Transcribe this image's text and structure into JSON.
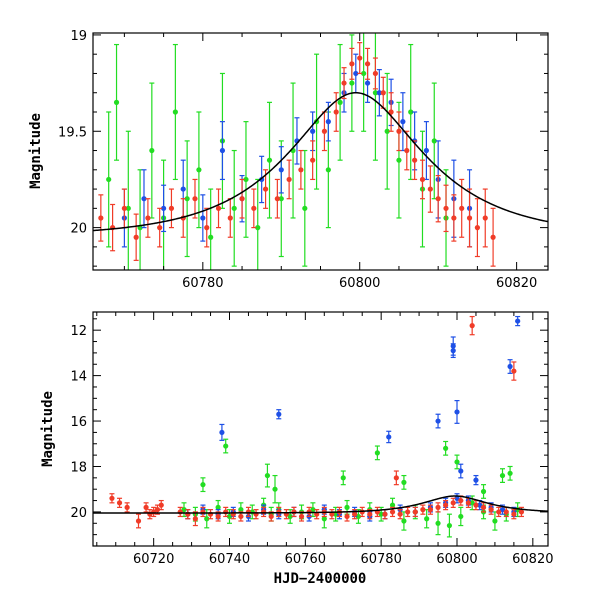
{
  "chart_data": [
    {
      "type": "scatter",
      "title": "",
      "xlabel": "",
      "ylabel": "Magnitude",
      "xlim": [
        60766,
        60824
      ],
      "ylim": [
        20.22,
        18.99
      ],
      "y_inverted": true,
      "x_ticks": [
        60780,
        60800,
        60820
      ],
      "y_ticks": [
        19,
        19.5,
        20
      ],
      "y_tick_labels": [
        "19",
        "19.5",
        "20"
      ],
      "model_curve": {
        "name": "",
        "color": "#000000",
        "baseline": 20.05,
        "peak_time": 60799.5,
        "peak_mag": 19.3,
        "tE": 14,
        "x_range": [
          60766,
          60824
        ]
      },
      "series": [
        {
          "name": "",
          "color": "#22dd22",
          "x": [
            60768,
            60769,
            60770.5,
            60772,
            60773.5,
            60775,
            60776.5,
            60778,
            60779.5,
            60781,
            60782.5,
            60784,
            60785.5,
            60787,
            60788.5,
            60790,
            60791.5,
            60793,
            60794.5,
            60796,
            60797.5,
            60799,
            60800.5,
            60802,
            60803.5,
            60805,
            60806.5,
            60808,
            60809.5,
            60811
          ],
          "y": [
            19.75,
            19.35,
            19.9,
            20.0,
            19.6,
            19.95,
            19.4,
            19.85,
            19.7,
            20.05,
            19.55,
            19.9,
            19.75,
            20.0,
            19.65,
            19.85,
            19.6,
            19.9,
            19.45,
            19.7,
            19.35,
            19.25,
            19.2,
            19.3,
            19.5,
            19.65,
            19.4,
            19.8,
            19.55,
            19.95
          ],
          "err": [
            0.35,
            0.3,
            0.4,
            0.3,
            0.35,
            0.3,
            0.35,
            0.3,
            0.3,
            0.25,
            0.35,
            0.3,
            0.3,
            0.25,
            0.3,
            0.3,
            0.35,
            0.3,
            0.35,
            0.3,
            0.3,
            0.25,
            0.3,
            0.35,
            0.3,
            0.3,
            0.35,
            0.3,
            0.3,
            0.25
          ]
        },
        {
          "name": "",
          "color": "#1e50e6",
          "x": [
            60770,
            60772.5,
            60775,
            60777.5,
            60780,
            60782.5,
            60785,
            60787.5,
            60790,
            60792,
            60794,
            60796,
            60798,
            60799.5,
            60801,
            60802.5,
            60804,
            60805.5,
            60807,
            60808.5,
            60810,
            60812,
            60814
          ],
          "y": [
            19.95,
            19.85,
            19.9,
            19.8,
            19.95,
            19.6,
            19.85,
            19.75,
            19.7,
            19.55,
            19.5,
            19.45,
            19.3,
            19.2,
            19.25,
            19.3,
            19.35,
            19.45,
            19.55,
            19.6,
            19.75,
            19.85,
            19.9
          ],
          "err": [
            0.15,
            0.15,
            0.12,
            0.15,
            0.12,
            0.15,
            0.12,
            0.12,
            0.12,
            0.12,
            0.1,
            0.1,
            0.1,
            0.1,
            0.1,
            0.12,
            0.12,
            0.15,
            0.15,
            0.15,
            0.2,
            0.2,
            0.2
          ]
        },
        {
          "name": "",
          "color": "#f03c28",
          "x": [
            60767,
            60768.5,
            60770,
            60771.5,
            60773,
            60774.5,
            60776,
            60777.5,
            60779,
            60780.5,
            60782,
            60783.5,
            60785,
            60786.5,
            60788,
            60789.5,
            60791,
            60792.5,
            60794,
            60795.5,
            60797,
            60798,
            60799,
            60800,
            60801,
            60802,
            60803,
            60804,
            60805,
            60806,
            60807,
            60808,
            60809,
            60810,
            60811,
            60812,
            60813,
            60814,
            60815,
            60816,
            60817
          ],
          "y": [
            19.95,
            20.0,
            19.9,
            20.05,
            19.95,
            20.0,
            19.9,
            19.95,
            19.85,
            20.0,
            19.9,
            19.95,
            19.85,
            19.9,
            19.8,
            19.85,
            19.75,
            19.7,
            19.65,
            19.5,
            19.4,
            19.25,
            19.15,
            19.12,
            19.15,
            19.2,
            19.3,
            19.4,
            19.5,
            19.6,
            19.65,
            19.75,
            19.8,
            19.85,
            19.9,
            19.95,
            19.9,
            19.95,
            20.0,
            19.95,
            20.05
          ],
          "err": [
            0.12,
            0.12,
            0.1,
            0.12,
            0.1,
            0.1,
            0.1,
            0.1,
            0.1,
            0.1,
            0.1,
            0.1,
            0.1,
            0.1,
            0.1,
            0.1,
            0.1,
            0.1,
            0.1,
            0.1,
            0.1,
            0.08,
            0.08,
            0.08,
            0.08,
            0.08,
            0.08,
            0.1,
            0.1,
            0.1,
            0.1,
            0.1,
            0.12,
            0.12,
            0.12,
            0.12,
            0.15,
            0.15,
            0.15,
            0.15,
            0.15
          ]
        }
      ]
    },
    {
      "type": "scatter",
      "title": "",
      "xlabel": "HJD−2400000",
      "ylabel": "Magnitude",
      "xlim": [
        60704,
        60824
      ],
      "ylim": [
        21.5,
        11.2
      ],
      "y_inverted": true,
      "x_ticks": [
        60720,
        60740,
        60760,
        60780,
        60800,
        60820
      ],
      "y_ticks": [
        12,
        14,
        16,
        18,
        20
      ],
      "y_tick_labels": [
        "12",
        "14",
        "16",
        "18",
        "20"
      ],
      "model_curve": {
        "name": "",
        "color": "#000000",
        "baseline": 20.05,
        "peak_time": 60799.5,
        "peak_mag": 19.3,
        "tE": 14,
        "x_range": [
          60704,
          60824
        ]
      },
      "series": [
        {
          "name": "",
          "color": "#22dd22",
          "x": [
            60728,
            60731,
            60734,
            60737,
            60740,
            60743,
            60746,
            60749,
            60751,
            60753,
            60756,
            60759,
            60762,
            60765,
            60768,
            60771,
            60774,
            60777,
            60780,
            60783,
            60786,
            60789,
            60792,
            60795,
            60798,
            60801,
            60804,
            60807,
            60810,
            60813,
            60816,
            60733,
            60739,
            60750,
            60752,
            60770,
            60779,
            60786,
            60797,
            60800,
            60807,
            60812,
            60814
          ],
          "y": [
            19.9,
            20.1,
            20.3,
            19.8,
            20.2,
            19.9,
            20.0,
            19.7,
            20.1,
            19.9,
            20.2,
            20.0,
            19.9,
            20.3,
            20.1,
            19.8,
            20.2,
            19.9,
            20.1,
            19.7,
            20.4,
            20.0,
            20.3,
            20.5,
            20.6,
            20.2,
            19.6,
            20.0,
            20.4,
            20.1,
            19.9,
            18.8,
            17.1,
            18.4,
            19.0,
            18.5,
            17.4,
            18.7,
            17.2,
            17.8,
            19.1,
            18.4,
            18.3
          ],
          "err": [
            0.3,
            0.3,
            0.4,
            0.3,
            0.3,
            0.3,
            0.3,
            0.3,
            0.3,
            0.3,
            0.3,
            0.3,
            0.3,
            0.4,
            0.3,
            0.3,
            0.3,
            0.3,
            0.3,
            0.3,
            0.4,
            0.3,
            0.4,
            0.5,
            0.5,
            0.4,
            0.3,
            0.3,
            0.4,
            0.3,
            0.3,
            0.3,
            0.3,
            0.5,
            0.6,
            0.3,
            0.3,
            0.3,
            0.3,
            0.3,
            0.3,
            0.3,
            0.3
          ]
        },
        {
          "name": "",
          "color": "#1e50e6",
          "x": [
            60729,
            60733,
            60737,
            60741,
            60745,
            60749,
            60753,
            60757,
            60761,
            60765,
            60769,
            60773,
            60777,
            60781,
            60785,
            60789,
            60793,
            60797,
            60800,
            60803,
            60806,
            60809,
            60812,
            60815,
            60738,
            60753,
            60782,
            60795,
            60799,
            60800,
            60801,
            60814,
            60816,
            60799,
            60805
          ],
          "y": [
            20.1,
            19.9,
            20.1,
            20.0,
            20.2,
            19.9,
            20.1,
            20.0,
            20.2,
            19.9,
            20.1,
            20.0,
            20.2,
            20.1,
            19.9,
            20.0,
            19.8,
            19.6,
            19.4,
            19.5,
            19.7,
            19.8,
            19.9,
            20.0,
            16.5,
            15.7,
            16.7,
            16.0,
            12.7,
            15.6,
            18.2,
            13.6,
            11.6,
            12.9,
            18.6
          ],
          "err": [
            0.2,
            0.2,
            0.2,
            0.2,
            0.2,
            0.2,
            0.2,
            0.2,
            0.2,
            0.2,
            0.2,
            0.2,
            0.2,
            0.2,
            0.2,
            0.2,
            0.2,
            0.2,
            0.2,
            0.2,
            0.2,
            0.2,
            0.2,
            0.2,
            0.35,
            0.2,
            0.25,
            0.3,
            0.4,
            0.5,
            0.3,
            0.3,
            0.2,
            0.3,
            0.2
          ]
        },
        {
          "name": "",
          "color": "#f03c28",
          "x": [
            60709,
            60711,
            60713,
            60716,
            60718,
            60719,
            60720,
            60721,
            60722,
            60727,
            60729,
            60731,
            60733,
            60735,
            60737,
            60739,
            60741,
            60743,
            60745,
            60747,
            60749,
            60751,
            60753,
            60755,
            60757,
            60759,
            60761,
            60763,
            60765,
            60767,
            60769,
            60771,
            60773,
            60775,
            60777,
            60779,
            60781,
            60783,
            60785,
            60787,
            60789,
            60791,
            60793,
            60795,
            60797,
            60799,
            60801,
            60803,
            60805,
            60807,
            60809,
            60811,
            60813,
            60815,
            60817,
            60784,
            60804,
            60815
          ],
          "y": [
            19.4,
            19.6,
            19.8,
            20.4,
            19.8,
            20.1,
            20.0,
            19.9,
            19.7,
            20.0,
            20.1,
            20.3,
            20.0,
            20.1,
            20.2,
            20.0,
            20.1,
            20.2,
            20.0,
            20.1,
            20.0,
            20.2,
            20.0,
            20.1,
            20.0,
            20.2,
            20.0,
            20.1,
            20.0,
            20.1,
            20.0,
            20.2,
            20.1,
            20.0,
            20.1,
            20.0,
            20.1,
            20.0,
            20.1,
            20.0,
            20.0,
            19.9,
            19.9,
            19.8,
            19.7,
            19.6,
            19.5,
            19.6,
            19.7,
            19.8,
            19.9,
            20.0,
            20.0,
            20.1,
            20.0,
            18.5,
            11.8,
            13.8
          ],
          "err": [
            0.2,
            0.2,
            0.2,
            0.3,
            0.2,
            0.2,
            0.2,
            0.2,
            0.2,
            0.2,
            0.2,
            0.3,
            0.2,
            0.2,
            0.2,
            0.2,
            0.2,
            0.2,
            0.2,
            0.2,
            0.2,
            0.2,
            0.2,
            0.2,
            0.2,
            0.2,
            0.2,
            0.2,
            0.2,
            0.2,
            0.2,
            0.2,
            0.2,
            0.2,
            0.2,
            0.2,
            0.2,
            0.2,
            0.2,
            0.2,
            0.2,
            0.2,
            0.2,
            0.2,
            0.2,
            0.2,
            0.2,
            0.2,
            0.2,
            0.2,
            0.2,
            0.2,
            0.2,
            0.2,
            0.2,
            0.3,
            0.4,
            0.4
          ]
        }
      ]
    }
  ]
}
